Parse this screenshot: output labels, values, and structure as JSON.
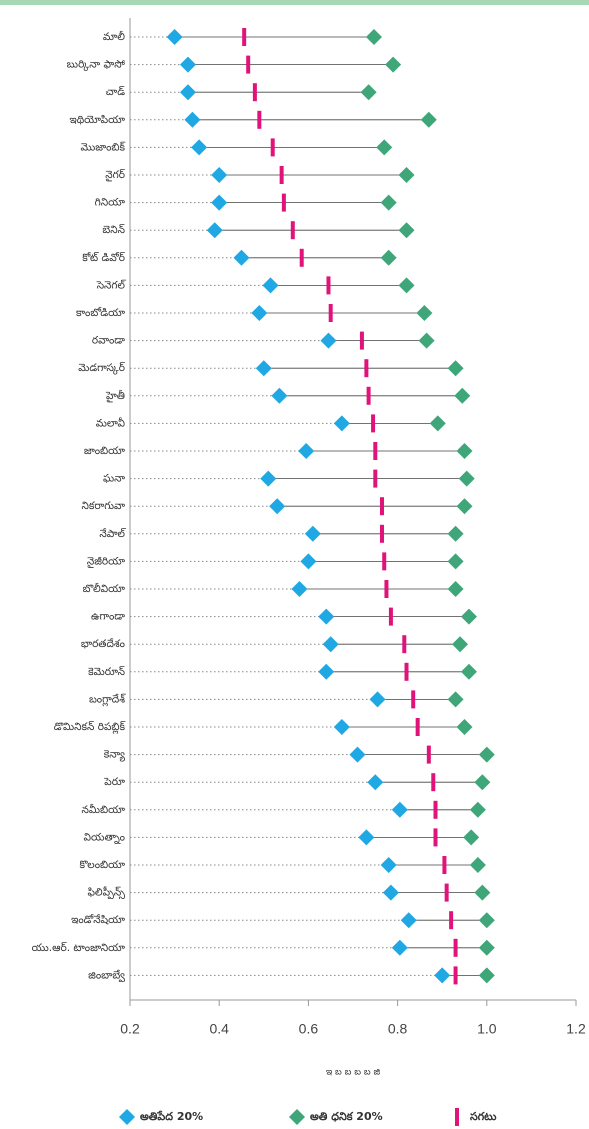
{
  "chart_data": {
    "type": "dumbbell",
    "categories": [
      "మాలీ",
      "బుర్కినా ఫాసో",
      "చాడ్",
      "ఇథియోపియా",
      "మొజాంబిక్",
      "నైగర్",
      "గినియా",
      "బెనిన్",
      "కోట్ డివోర్",
      "సెనెగల్",
      "కాంబోడియా",
      "రవాండా",
      "మెడగాస్కర్",
      "హైతీ",
      "మలావీ",
      "జాంబియా",
      "ఘనా",
      "నికరాగువా",
      "నేపాల్",
      "నైజీరియా",
      "బొలీవియా",
      "ఉగాండా",
      "భారతదేశం",
      "కెమెరూన్",
      "బంగ్లాదేశ్",
      "డొమినికన్ రిపబ్లిక్",
      "కెన్యా",
      "పెరూ",
      "నమీబియా",
      "వియత్నాం",
      "కొలంబియా",
      "ఫిలిప్పీన్స్",
      "ఇండోనేషియా",
      "యు.ఆర్. టాంజానియా",
      "జింబాబ్వే"
    ],
    "series": [
      {
        "name": "అతిపేద 20%",
        "color": "#1fa8e4",
        "marker": "diamond",
        "values": [
          0.3,
          0.33,
          0.33,
          0.34,
          0.355,
          0.4,
          0.4,
          0.39,
          0.45,
          0.515,
          0.49,
          0.645,
          0.5,
          0.535,
          0.675,
          0.595,
          0.51,
          0.53,
          0.61,
          0.6,
          0.58,
          0.64,
          0.65,
          0.64,
          0.755,
          0.675,
          0.71,
          0.75,
          0.805,
          0.73,
          0.78,
          0.785,
          0.825,
          0.805,
          0.9
        ]
      },
      {
        "name": "అతి ధనిక 20%",
        "color": "#3fa67a",
        "marker": "diamond",
        "values": [
          0.747,
          0.79,
          0.735,
          0.87,
          0.77,
          0.82,
          0.78,
          0.82,
          0.78,
          0.82,
          0.86,
          0.865,
          0.93,
          0.945,
          0.89,
          0.95,
          0.955,
          0.95,
          0.93,
          0.93,
          0.93,
          0.96,
          0.94,
          0.96,
          0.93,
          0.95,
          1.0,
          0.99,
          0.98,
          0.965,
          0.98,
          0.99,
          1.0,
          1.0,
          1.0
        ]
      },
      {
        "name": "సగటు",
        "color": "#e0137b",
        "marker": "bar",
        "values": [
          0.456,
          0.465,
          0.48,
          0.49,
          0.52,
          0.54,
          0.545,
          0.565,
          0.585,
          0.645,
          0.65,
          0.72,
          0.73,
          0.735,
          0.745,
          0.75,
          0.75,
          0.765,
          0.765,
          0.77,
          0.775,
          0.785,
          0.815,
          0.82,
          0.835,
          0.845,
          0.87,
          0.88,
          0.885,
          0.885,
          0.905,
          0.91,
          0.92,
          0.93,
          0.93
        ]
      }
    ],
    "xlabel": "ఇ బ బ బ బ జి",
    "xlim": [
      0.2,
      1.2
    ],
    "xticks": [
      0.2,
      0.4,
      0.6,
      0.8,
      {
        "value": 1.0,
        "label": "1.0"
      },
      1.2
    ],
    "legend": "bottom"
  }
}
